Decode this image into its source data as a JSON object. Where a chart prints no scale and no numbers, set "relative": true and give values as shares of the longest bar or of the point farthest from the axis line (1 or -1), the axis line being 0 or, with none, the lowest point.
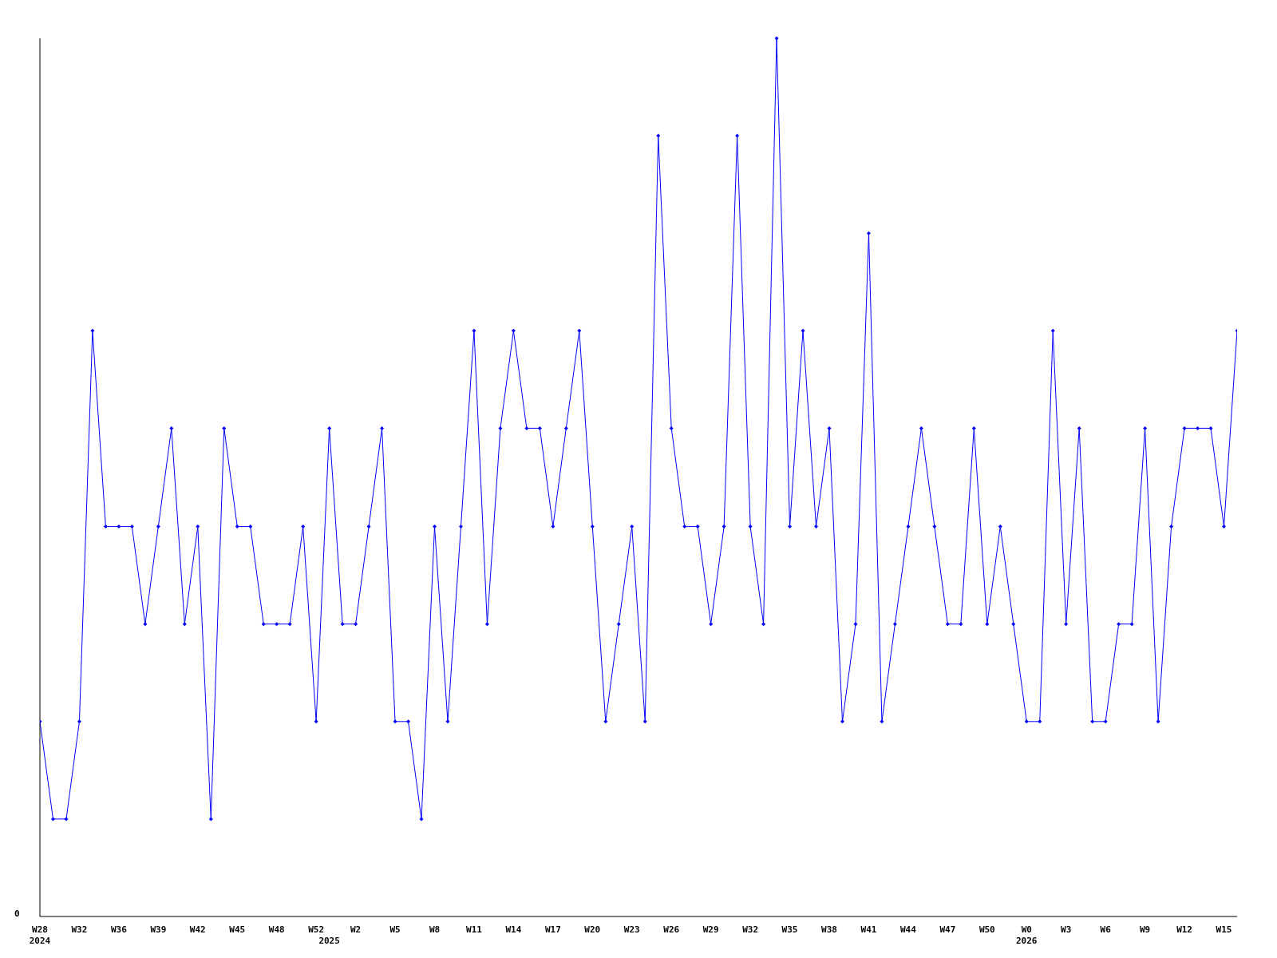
{
  "chart_data": {
    "type": "line",
    "relative": true,
    "color": "#0000ff",
    "marker": "diamond",
    "line_style": "solid",
    "annotations": [
      "0"
    ],
    "categories": [
      "W28\n2024",
      null,
      null,
      "W32",
      null,
      null,
      "W36",
      null,
      null,
      "W39",
      null,
      null,
      "W42",
      null,
      null,
      "W45",
      null,
      null,
      "W48",
      null,
      null,
      "W52",
      "\n2025",
      null,
      "W2",
      null,
      null,
      "W5",
      null,
      null,
      "W8",
      null,
      null,
      "W11",
      null,
      null,
      "W14",
      null,
      null,
      "W17",
      null,
      null,
      "W20",
      null,
      null,
      "W23",
      null,
      null,
      "W26",
      null,
      null,
      "W29",
      null,
      null,
      "W32",
      null,
      null,
      "W35",
      null,
      null,
      "W38",
      null,
      null,
      "W41",
      null,
      null,
      "W44",
      null,
      null,
      "W47",
      null,
      null,
      "W50",
      null,
      null,
      "W0\n2026",
      null,
      null,
      "W3",
      null,
      null,
      "W6",
      null,
      null,
      "W9",
      null,
      null,
      "W12",
      null,
      null,
      "W15",
      null
    ],
    "values": [
      0.222,
      0.111,
      0.111,
      0.222,
      0.667,
      0.444,
      0.444,
      0.444,
      0.333,
      0.444,
      0.556,
      0.333,
      0.444,
      0.111,
      0.556,
      0.444,
      0.444,
      0.333,
      0.333,
      0.333,
      0.444,
      0.222,
      0.556,
      0.333,
      0.333,
      0.444,
      0.556,
      0.222,
      0.222,
      0.111,
      0.444,
      0.222,
      0.444,
      0.667,
      0.333,
      0.556,
      0.667,
      0.556,
      0.556,
      0.444,
      0.556,
      0.667,
      0.444,
      0.222,
      0.333,
      0.444,
      0.222,
      0.889,
      0.556,
      0.444,
      0.444,
      0.333,
      0.444,
      0.889,
      0.444,
      0.333,
      1,
      0.444,
      0.667,
      0.444,
      0.556,
      0.222,
      0.333,
      0.778,
      0.222,
      0.333,
      0.444,
      0.556,
      0.444,
      0.333,
      0.333,
      0.556,
      0.333,
      0.444,
      0.333,
      0.222,
      0.222,
      0.667,
      0.333,
      0.556,
      0.222,
      0.222,
      0.333,
      0.333,
      0.556,
      0.222,
      0.444,
      0.556,
      0.556,
      0.556,
      0.444,
      0.667
    ]
  }
}
